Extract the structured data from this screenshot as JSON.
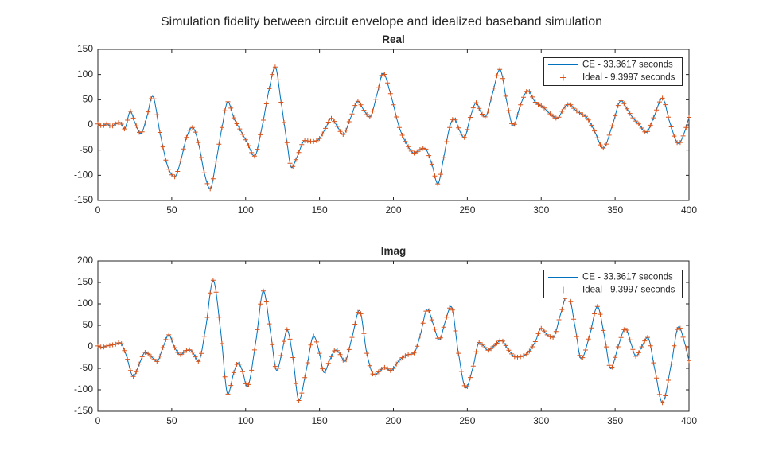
{
  "figure": {
    "title": "Simulation fidelity between circuit envelope and idealized baseband simulation"
  },
  "colors": {
    "ce_line": "#0072BD",
    "ideal_marker": "#D95319",
    "axis": "#262626",
    "text": "#262626",
    "legend_border": "#262626",
    "background": "#FFFFFF"
  },
  "chart_data": [
    {
      "type": "line",
      "name": "real",
      "title": "Real",
      "xlabel": "",
      "ylabel": "",
      "xlim": [
        0,
        400
      ],
      "ylim": [
        -150,
        150
      ],
      "xticks": [
        0,
        50,
        100,
        150,
        200,
        250,
        300,
        350,
        400
      ],
      "yticks": [
        -150,
        -100,
        -50,
        0,
        50,
        100,
        150
      ],
      "grid": false,
      "legend_position": "top-right",
      "series": [
        {
          "name": "CE - 33.3617 seconds",
          "style": "line",
          "color": "#0072BD"
        },
        {
          "name": "Ideal - 9.3997 seconds",
          "style": "plus-marker",
          "color": "#D95319",
          "marker_step_x": 2
        }
      ],
      "keypoints": [
        [
          0,
          2
        ],
        [
          3,
          -2
        ],
        [
          6,
          2
        ],
        [
          9,
          -3
        ],
        [
          12,
          2
        ],
        [
          15,
          5
        ],
        [
          18,
          -8
        ],
        [
          22,
          27
        ],
        [
          25,
          5
        ],
        [
          29,
          -17
        ],
        [
          33,
          14
        ],
        [
          37,
          57
        ],
        [
          42,
          -15
        ],
        [
          47,
          -80
        ],
        [
          52,
          -103
        ],
        [
          56,
          -72
        ],
        [
          60,
          -25
        ],
        [
          64,
          -5
        ],
        [
          68,
          -35
        ],
        [
          72,
          -95
        ],
        [
          76,
          -127
        ],
        [
          80,
          -72
        ],
        [
          84,
          -5
        ],
        [
          88,
          46
        ],
        [
          92,
          14
        ],
        [
          96,
          -8
        ],
        [
          101,
          -35
        ],
        [
          106,
          -62
        ],
        [
          111,
          -5
        ],
        [
          116,
          72
        ],
        [
          120,
          115
        ],
        [
          124,
          45
        ],
        [
          128,
          -35
        ],
        [
          131,
          -85
        ],
        [
          135,
          -62
        ],
        [
          140,
          -31
        ],
        [
          145,
          -33
        ],
        [
          150,
          -27
        ],
        [
          154,
          -7
        ],
        [
          158,
          13
        ],
        [
          162,
          -3
        ],
        [
          166,
          -19
        ],
        [
          171,
          14
        ],
        [
          176,
          47
        ],
        [
          180,
          29
        ],
        [
          184,
          16
        ],
        [
          189,
          62
        ],
        [
          193,
          103
        ],
        [
          198,
          62
        ],
        [
          204,
          -5
        ],
        [
          210,
          -43
        ],
        [
          214,
          -56
        ],
        [
          218,
          -49
        ],
        [
          221,
          -46
        ],
        [
          226,
          -78
        ],
        [
          230,
          -117
        ],
        [
          234,
          -65
        ],
        [
          238,
          -5
        ],
        [
          241,
          13
        ],
        [
          245,
          -13
        ],
        [
          248,
          -25
        ],
        [
          252,
          15
        ],
        [
          256,
          44
        ],
        [
          259,
          26
        ],
        [
          262,
          16
        ],
        [
          267,
          62
        ],
        [
          272,
          110
        ],
        [
          277,
          42
        ],
        [
          281,
          -2
        ],
        [
          286,
          40
        ],
        [
          291,
          68
        ],
        [
          296,
          45
        ],
        [
          301,
          36
        ],
        [
          306,
          22
        ],
        [
          311,
          13
        ],
        [
          315,
          32
        ],
        [
          319,
          41
        ],
        [
          323,
          30
        ],
        [
          327,
          22
        ],
        [
          331,
          14
        ],
        [
          336,
          -12
        ],
        [
          342,
          -46
        ],
        [
          348,
          -2
        ],
        [
          354,
          48
        ],
        [
          358,
          32
        ],
        [
          362,
          14
        ],
        [
          366,
          2
        ],
        [
          371,
          -15
        ],
        [
          376,
          14
        ],
        [
          382,
          53
        ],
        [
          387,
          5
        ],
        [
          393,
          -37
        ],
        [
          397,
          -14
        ],
        [
          400,
          15
        ]
      ]
    },
    {
      "type": "line",
      "name": "imag",
      "title": "Imag",
      "xlabel": "",
      "ylabel": "",
      "xlim": [
        0,
        400
      ],
      "ylim": [
        -150,
        200
      ],
      "xticks": [
        0,
        50,
        100,
        150,
        200,
        250,
        300,
        350,
        400
      ],
      "yticks": [
        -150,
        -100,
        -50,
        0,
        50,
        100,
        150,
        200
      ],
      "grid": false,
      "legend_position": "top-right",
      "series": [
        {
          "name": "CE - 33.3617 seconds",
          "style": "line",
          "color": "#0072BD"
        },
        {
          "name": "Ideal - 9.3997 seconds",
          "style": "plus-marker",
          "color": "#D95319",
          "marker_step_x": 2
        }
      ],
      "keypoints": [
        [
          0,
          2
        ],
        [
          3,
          -1
        ],
        [
          6,
          2
        ],
        [
          9,
          4
        ],
        [
          12,
          6
        ],
        [
          15,
          10
        ],
        [
          19,
          -18
        ],
        [
          24,
          -69
        ],
        [
          28,
          -40
        ],
        [
          32,
          -13
        ],
        [
          36,
          -22
        ],
        [
          40,
          -34
        ],
        [
          44,
          -2
        ],
        [
          48,
          28
        ],
        [
          52,
          -2
        ],
        [
          56,
          -18
        ],
        [
          59,
          -10
        ],
        [
          62,
          -7
        ],
        [
          65,
          -17
        ],
        [
          68,
          -34
        ],
        [
          73,
          45
        ],
        [
          78,
          155
        ],
        [
          83,
          40
        ],
        [
          88,
          -110
        ],
        [
          92,
          -60
        ],
        [
          95,
          -37
        ],
        [
          98,
          -58
        ],
        [
          101,
          -93
        ],
        [
          107,
          15
        ],
        [
          112,
          130
        ],
        [
          117,
          30
        ],
        [
          121,
          -55
        ],
        [
          125,
          -5
        ],
        [
          128,
          40
        ],
        [
          132,
          -25
        ],
        [
          136,
          -125
        ],
        [
          141,
          -55
        ],
        [
          146,
          25
        ],
        [
          150,
          -15
        ],
        [
          153,
          -60
        ],
        [
          157,
          -30
        ],
        [
          161,
          -7
        ],
        [
          164,
          -18
        ],
        [
          167,
          -34
        ],
        [
          172,
          22
        ],
        [
          177,
          85
        ],
        [
          182,
          -15
        ],
        [
          187,
          -66
        ],
        [
          191,
          -55
        ],
        [
          194,
          -48
        ],
        [
          198,
          -55
        ],
        [
          204,
          -31
        ],
        [
          210,
          -18
        ],
        [
          214,
          -14
        ],
        [
          218,
          25
        ],
        [
          223,
          88
        ],
        [
          227,
          52
        ],
        [
          231,
          16
        ],
        [
          235,
          58
        ],
        [
          239,
          94
        ],
        [
          244,
          -15
        ],
        [
          249,
          -96
        ],
        [
          254,
          -45
        ],
        [
          258,
          10
        ],
        [
          261,
          2
        ],
        [
          264,
          -8
        ],
        [
          268,
          2
        ],
        [
          273,
          15
        ],
        [
          278,
          -8
        ],
        [
          283,
          -24
        ],
        [
          287,
          -22
        ],
        [
          291,
          -14
        ],
        [
          296,
          12
        ],
        [
          300,
          43
        ],
        [
          304,
          28
        ],
        [
          308,
          22
        ],
        [
          313,
          75
        ],
        [
          318,
          125
        ],
        [
          323,
          45
        ],
        [
          327,
          -28
        ],
        [
          333,
          30
        ],
        [
          338,
          94
        ],
        [
          343,
          20
        ],
        [
          347,
          -51
        ],
        [
          352,
          0
        ],
        [
          357,
          43
        ],
        [
          361,
          5
        ],
        [
          364,
          -22
        ],
        [
          368,
          0
        ],
        [
          372,
          22
        ],
        [
          377,
          -55
        ],
        [
          382,
          -130
        ],
        [
          388,
          -40
        ],
        [
          393,
          47
        ],
        [
          397,
          10
        ],
        [
          400,
          -32
        ]
      ]
    }
  ]
}
